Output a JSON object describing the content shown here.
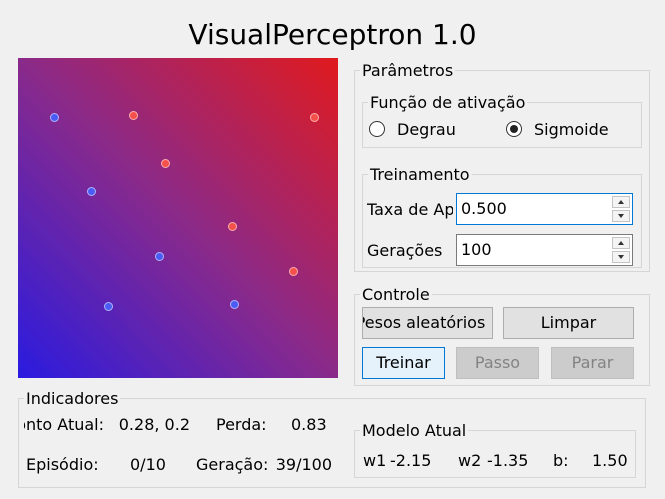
{
  "window": {
    "title": "VisualPerceptron 1.0"
  },
  "parametros": {
    "label": "Parâmetros",
    "funcao": {
      "label": "Função de ativação",
      "options": [
        "Degrau",
        "Sigmoide"
      ],
      "selected": "Sigmoide"
    },
    "treinamento": {
      "label": "Treinamento",
      "taxa_label": "Taxa de Aprendizado",
      "taxa_value": "0.500",
      "geracoes_label": "Gerações",
      "geracoes_value": "100"
    }
  },
  "controle": {
    "label": "Controle",
    "pesos_label": "Pesos aleatórios",
    "limpar_label": "Limpar",
    "treinar_label": "Treinar",
    "passo_label": "Passo",
    "parar_label": "Parar"
  },
  "indicadores": {
    "label": "Indicadores",
    "ponto_label": "Ponto Atual:",
    "ponto_value": "0.28,  0.2",
    "perda_label": "Perda:",
    "perda_value": "0.83",
    "episodio_label": "Episódio:",
    "episodio_value": "0/10",
    "geracao_label": "Geração:",
    "geracao_value": "39/100"
  },
  "modelo": {
    "label": "Modelo Atual",
    "w1_label": "w1",
    "w1_value": "-2.15",
    "w2_label": "w2",
    "w2_value": "-1.35",
    "b_label": "b:",
    "b_value": "1.50"
  },
  "colors": {
    "gradient_blue": "#2a1be0",
    "gradient_red": "#e01a1e",
    "point_blue": "#4a5cf5",
    "point_red": "#f5504a"
  }
}
